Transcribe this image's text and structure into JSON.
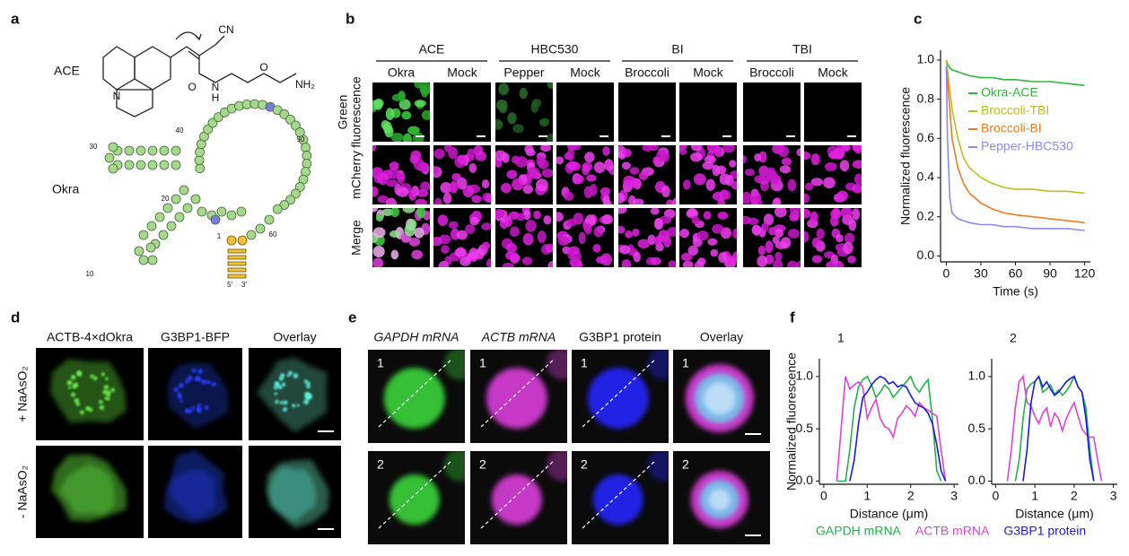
{
  "figure": {
    "panel_labels": [
      "a",
      "b",
      "c",
      "d",
      "e",
      "f"
    ],
    "a": {
      "molecule": "ACE",
      "rna": "Okra",
      "atoms": [
        "CN",
        "O",
        "N",
        "H",
        "O",
        "NH₂",
        "N"
      ],
      "numbers": [
        "30",
        "40",
        "50",
        "20",
        "10",
        "60",
        "1",
        "5′",
        "3′"
      ]
    },
    "b": {
      "groups": [
        "ACE",
        "HBC530",
        "BI",
        "TBI"
      ],
      "columns": [
        "Okra",
        "Mock",
        "Pepper",
        "Mock",
        "Broccoli",
        "Mock",
        "Broccoli",
        "Mock"
      ],
      "rows": [
        [
          "Green",
          "fluorescence"
        ],
        [
          "mCherry"
        ],
        [
          "Merge"
        ]
      ]
    },
    "d": {
      "columns": [
        "ACTB-4×dOkra",
        "G3BP1-BFP",
        "Overlay"
      ],
      "rows": [
        "+ NaAsO₂",
        "- NaAsO₂"
      ]
    },
    "e": {
      "columns": [
        "GAPDH mRNA",
        "ACTB mRNA",
        "G3BP1 protein",
        "Overlay"
      ],
      "cell_numbers": [
        "1",
        "2"
      ]
    }
  },
  "chart_data": [
    {
      "type": "line",
      "x_label": "Time (s)",
      "y_label": "Normalized fluorescence",
      "xlim": [
        -5,
        125
      ],
      "xticks": [
        0,
        30,
        60,
        90,
        120
      ],
      "ylim": [
        -0.03,
        1.05
      ],
      "yticks": [
        {
          "value": 0,
          "label": "0.0"
        },
        0.2,
        0.4,
        0.6,
        0.8,
        {
          "value": 1,
          "label": "1.0"
        }
      ],
      "legend": "upper right",
      "x": [
        0,
        1,
        3,
        5,
        10,
        15,
        20,
        30,
        40,
        50,
        60,
        75,
        90,
        105,
        120
      ],
      "series": [
        {
          "name": "Okra-ACE",
          "color": "#2db83d",
          "values": [
            1.0,
            0.98,
            0.96,
            0.95,
            0.94,
            0.93,
            0.92,
            0.91,
            0.91,
            0.9,
            0.9,
            0.89,
            0.89,
            0.88,
            0.87
          ]
        },
        {
          "name": "Broccoli-TBI",
          "color": "#bdbd1c",
          "values": [
            1.0,
            0.95,
            0.85,
            0.75,
            0.6,
            0.5,
            0.45,
            0.4,
            0.37,
            0.35,
            0.34,
            0.34,
            0.33,
            0.33,
            0.32
          ]
        },
        {
          "name": "Broccoli-BI",
          "color": "#f07a20",
          "values": [
            0.96,
            0.9,
            0.75,
            0.6,
            0.45,
            0.37,
            0.32,
            0.27,
            0.24,
            0.22,
            0.21,
            0.2,
            0.19,
            0.18,
            0.17
          ]
        },
        {
          "name": "Pepper-HBC530",
          "color": "#8a8aee",
          "values": [
            0.97,
            0.6,
            0.3,
            0.22,
            0.19,
            0.18,
            0.17,
            0.16,
            0.16,
            0.15,
            0.15,
            0.14,
            0.14,
            0.14,
            0.13
          ]
        }
      ]
    },
    {
      "type": "line",
      "title": "1",
      "x_label": "Distance (μm)",
      "y_label": "Normalized fluorescence",
      "xlim": [
        -0.1,
        3.1
      ],
      "xticks": [
        0,
        1,
        2,
        3
      ],
      "ylim": [
        -0.03,
        1.17
      ],
      "yticks": [
        {
          "value": 0,
          "label": "0.0"
        },
        0.5,
        {
          "value": 1,
          "label": "1.0"
        }
      ],
      "legend": "below",
      "series": [
        {
          "name": "GAPDH mRNA",
          "color": "#22b14c",
          "x": [
            0.3,
            0.5,
            0.6,
            0.7,
            0.8,
            0.9,
            1.0,
            1.1,
            1.2,
            1.3,
            1.4,
            1.5,
            1.6,
            1.7,
            1.8,
            1.9,
            2.0,
            2.1,
            2.2,
            2.3,
            2.4,
            2.5,
            2.6,
            2.7
          ],
          "values": [
            0,
            0,
            0.3,
            0.7,
            0.9,
            0.97,
            1.0,
            0.92,
            0.8,
            0.85,
            0.92,
            0.88,
            0.8,
            0.85,
            0.9,
            0.95,
            1.0,
            0.9,
            0.85,
            0.92,
            0.97,
            0.6,
            0.1,
            0
          ]
        },
        {
          "name": "ACTB mRNA",
          "color": "#e040e0",
          "x": [
            0.3,
            0.4,
            0.5,
            0.6,
            0.7,
            0.8,
            0.9,
            1.0,
            1.1,
            1.2,
            1.3,
            1.4,
            1.5,
            1.6,
            1.7,
            1.8,
            1.9,
            2.0,
            2.1,
            2.2,
            2.3,
            2.4,
            2.5,
            2.6,
            2.7,
            2.8
          ],
          "values": [
            0,
            0.5,
            1.0,
            0.88,
            0.92,
            0.95,
            0.9,
            0.6,
            0.7,
            0.78,
            0.6,
            0.52,
            0.5,
            0.42,
            0.6,
            0.65,
            0.72,
            0.68,
            0.62,
            0.75,
            0.7,
            0.68,
            0.65,
            0.62,
            0.3,
            0
          ]
        },
        {
          "name": "G3BP1 protein",
          "color": "#1a1adb",
          "x": [
            0.6,
            0.7,
            0.8,
            0.9,
            1.0,
            1.1,
            1.2,
            1.3,
            1.4,
            1.5,
            1.6,
            1.7,
            1.8,
            1.9,
            2.0,
            2.1,
            2.2,
            2.3,
            2.4,
            2.5,
            2.6,
            2.7,
            2.8
          ],
          "values": [
            0,
            0.2,
            0.55,
            0.8,
            0.85,
            0.92,
            0.97,
            1.0,
            0.98,
            0.93,
            0.95,
            0.9,
            0.92,
            0.9,
            0.82,
            0.75,
            0.72,
            0.7,
            0.65,
            0.55,
            0.35,
            0.1,
            0
          ]
        }
      ]
    },
    {
      "type": "line",
      "title": "2",
      "x_label": "Distance (μm)",
      "xlim": [
        -0.1,
        3.1
      ],
      "xticks": [
        0,
        1,
        2,
        3
      ],
      "ylim": [
        -0.03,
        1.17
      ],
      "yticks": [
        {
          "value": 0,
          "label": "0.0"
        },
        0.5,
        {
          "value": 1,
          "label": "1.0"
        }
      ],
      "series": [
        {
          "color": "#22b14c",
          "x": [
            0.5,
            0.6,
            0.7,
            0.8,
            0.9,
            1.0,
            1.1,
            1.2,
            1.3,
            1.4,
            1.5,
            1.6,
            1.7,
            1.8,
            1.9,
            2.0,
            2.1,
            2.2,
            2.3,
            2.4,
            2.5
          ],
          "values": [
            0,
            0.2,
            0.6,
            0.88,
            0.93,
            0.95,
            1.0,
            0.85,
            0.88,
            0.92,
            0.83,
            0.87,
            0.82,
            0.86,
            0.92,
            1.0,
            0.9,
            0.85,
            0.7,
            0.3,
            0
          ]
        },
        {
          "color": "#e040e0",
          "x": [
            0.3,
            0.4,
            0.5,
            0.6,
            0.7,
            0.8,
            0.9,
            1.0,
            1.1,
            1.2,
            1.3,
            1.4,
            1.5,
            1.6,
            1.7,
            1.8,
            1.9,
            2.0,
            2.1,
            2.2,
            2.3,
            2.4,
            2.5,
            2.6,
            2.7
          ],
          "values": [
            0,
            0.3,
            0.7,
            0.95,
            1.0,
            0.75,
            0.72,
            0.62,
            0.55,
            0.65,
            0.7,
            0.52,
            0.65,
            0.6,
            0.48,
            0.6,
            0.68,
            0.75,
            0.62,
            0.5,
            0.45,
            0.42,
            0.42,
            0.2,
            0
          ]
        },
        {
          "color": "#1a1adb",
          "x": [
            0.7,
            0.8,
            0.9,
            1.0,
            1.1,
            1.2,
            1.3,
            1.4,
            1.5,
            1.6,
            1.7,
            1.8,
            1.9,
            2.0,
            2.1,
            2.2,
            2.3,
            2.4,
            2.5
          ],
          "values": [
            0,
            0.3,
            0.75,
            0.95,
            1.0,
            0.9,
            0.95,
            0.88,
            0.82,
            0.85,
            0.9,
            0.95,
            0.98,
            1.0,
            0.9,
            0.85,
            0.6,
            0.2,
            0
          ]
        }
      ]
    }
  ]
}
